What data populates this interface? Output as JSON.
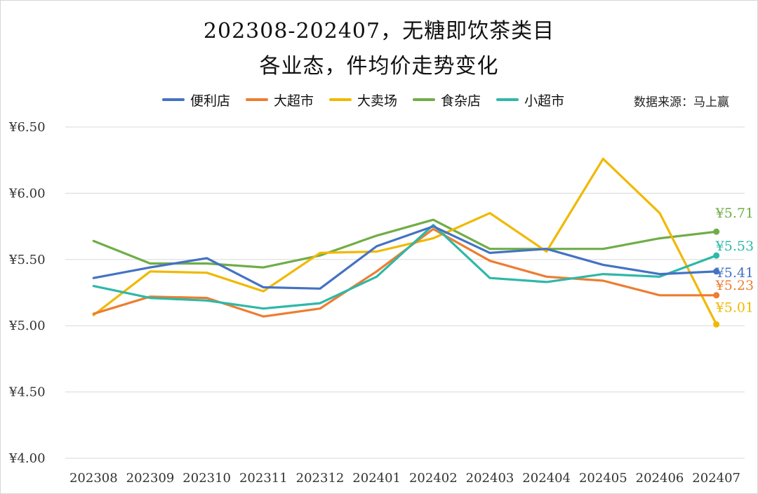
{
  "chart_data": {
    "type": "line",
    "title_line1": "202308-202407，无糖即饮茶类目",
    "title_line2": "各业态，件均价走势变化",
    "source": "数据来源：马上赢",
    "categories": [
      "202308",
      "202309",
      "202310",
      "202311",
      "202312",
      "202401",
      "202402",
      "202403",
      "202404",
      "202405",
      "202406",
      "202407"
    ],
    "y_ticks": [
      "¥4.00",
      "¥4.50",
      "¥5.00",
      "¥5.50",
      "¥6.00",
      "¥6.50"
    ],
    "ylim": [
      4.0,
      6.5
    ],
    "y_step": 0.5,
    "grid": true,
    "legend_position": "top",
    "series": [
      {
        "name": "便利店",
        "color": "#4472C4",
        "values": [
          5.36,
          5.44,
          5.51,
          5.29,
          5.28,
          5.6,
          5.75,
          5.55,
          5.58,
          5.46,
          5.39,
          5.41
        ],
        "end_label": "¥5.41"
      },
      {
        "name": "大超市",
        "color": "#ED7D31",
        "values": [
          5.09,
          5.22,
          5.21,
          5.07,
          5.13,
          5.41,
          5.73,
          5.49,
          5.37,
          5.34,
          5.23,
          5.23
        ],
        "end_label": "¥5.23"
      },
      {
        "name": "大卖场",
        "color": "#F0B900",
        "values": [
          5.08,
          5.41,
          5.4,
          5.26,
          5.55,
          5.56,
          5.66,
          5.85,
          5.56,
          6.26,
          5.85,
          5.01
        ],
        "end_label": "¥5.01"
      },
      {
        "name": "食杂店",
        "color": "#70AD47",
        "values": [
          5.64,
          5.47,
          5.47,
          5.44,
          5.53,
          5.68,
          5.8,
          5.58,
          5.58,
          5.58,
          5.66,
          5.71
        ],
        "end_label": "¥5.71"
      },
      {
        "name": "小超市",
        "color": "#2EB8A8",
        "values": [
          5.3,
          5.21,
          5.19,
          5.13,
          5.17,
          5.37,
          5.76,
          5.36,
          5.33,
          5.39,
          5.37,
          5.53
        ],
        "end_label": "¥5.53"
      }
    ]
  }
}
